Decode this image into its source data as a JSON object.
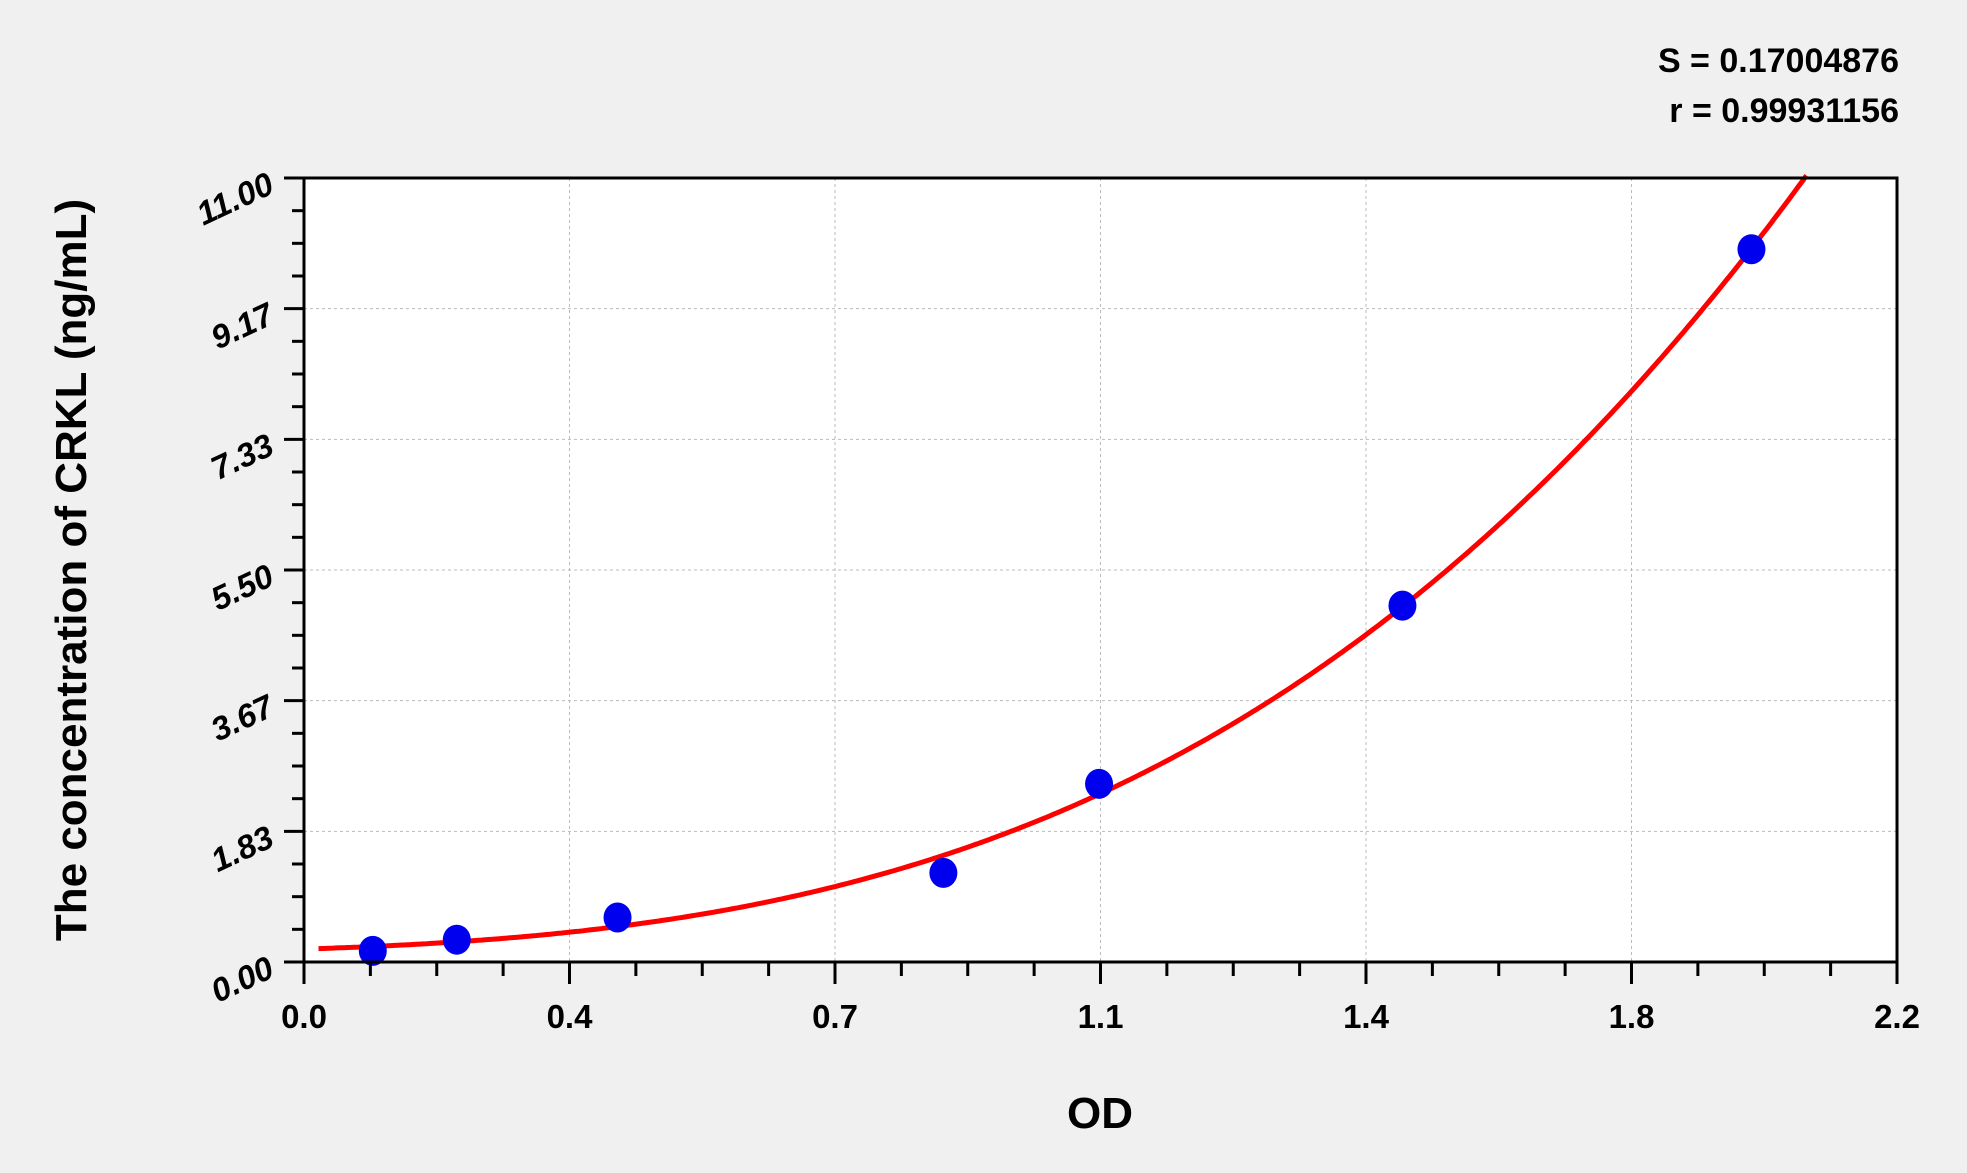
{
  "chart_data": {
    "type": "scatter",
    "title": "",
    "xlabel": "OD",
    "ylabel": "The concentration of CRKL (ng/mL)",
    "xlim": [
      0,
      2.2
    ],
    "ylim": [
      0,
      11
    ],
    "x_ticks": [
      "0.0",
      "0.4",
      "0.7",
      "1.1",
      "1.4",
      "1.8",
      "2.2"
    ],
    "y_ticks": [
      "0.00",
      "1.83",
      "3.67",
      "5.50",
      "7.33",
      "9.17",
      "11.00"
    ],
    "grid": true,
    "points": {
      "x": [
        0.095,
        0.211,
        0.433,
        0.883,
        1.098,
        1.517,
        1.999
      ],
      "y": [
        0.156,
        0.313,
        0.625,
        1.25,
        2.5,
        5,
        10
      ]
    },
    "fit_curve": true,
    "colors": {
      "points": "#0000ee",
      "curve": "#ff0000",
      "plot_bg": "#ffffff",
      "page_bg": "#f0f0f0"
    },
    "stats": {
      "s": "S = 0.17004876",
      "r": "r = 0.99931156"
    }
  }
}
